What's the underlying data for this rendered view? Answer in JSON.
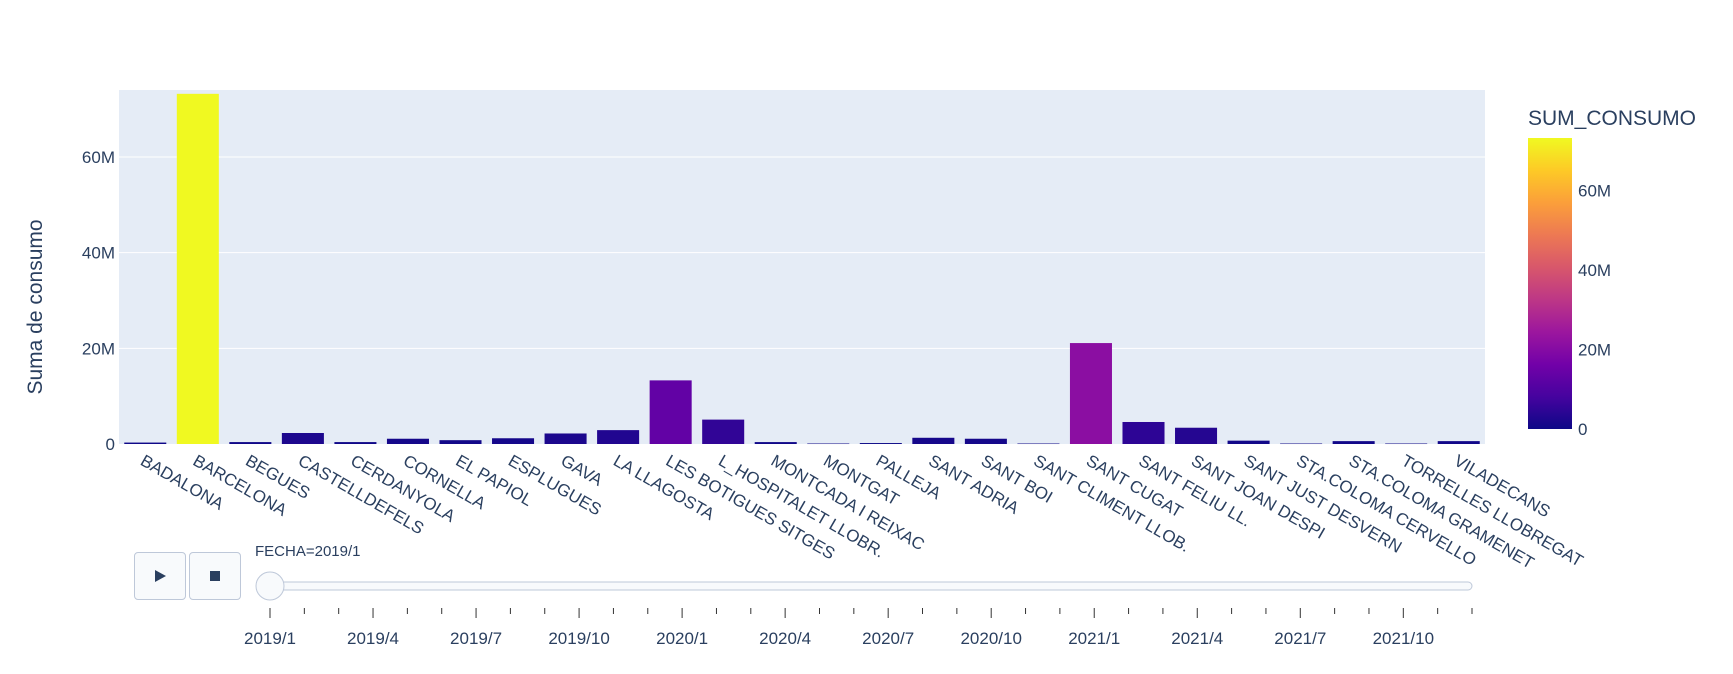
{
  "chart_data": {
    "type": "bar",
    "ylabel": "Suma de consumo",
    "xlabel": "",
    "ylim": [
      0,
      74000000
    ],
    "yticks": [
      0,
      20000000,
      40000000,
      60000000
    ],
    "ytick_labels": [
      "0",
      "20M",
      "40M",
      "60M"
    ],
    "categories": [
      "BADALONA",
      "BARCELONA",
      "BEGUES",
      "CASTELLDEFELS",
      "CERDANYOLA",
      "CORNELLA",
      "EL PAPIOL",
      "ESPLUGUES",
      "GAVA",
      "LA LLAGOSTA",
      "LES BOTIGUES SITGES",
      "L_HOSPITALET LLOBR.",
      "MONTCADA I REIXAC",
      "MONTGAT",
      "PALLEJA",
      "SANT ADRIA",
      "SANT BOI",
      "SANT CLIMENT LLOB.",
      "SANT CUGAT",
      "SANT FELIU LL.",
      "SANT JOAN DESPI",
      "SANT JUST DESVERN",
      "STA.COLOMA CERVELLO",
      "STA.COLOMA GRAMENET",
      "TORRELLES LLOBREGAT",
      "VILADECANS"
    ],
    "values": [
      300000,
      73200000,
      400000,
      2300000,
      400000,
      1100000,
      800000,
      1200000,
      2200000,
      2900000,
      13300000,
      5100000,
      400000,
      100000,
      200000,
      1300000,
      1100000,
      100000,
      21100000,
      4600000,
      3400000,
      700000,
      100000,
      600000,
      100000,
      600000
    ],
    "colorbar": {
      "title": "SUM_CONSUMO",
      "ticks": [
        0,
        20000000,
        40000000,
        60000000
      ],
      "tick_labels": [
        "0",
        "20M",
        "40M",
        "60M"
      ],
      "range": [
        0,
        73200000
      ],
      "colorscale": [
        "#0d0887",
        "#46039f",
        "#7201a8",
        "#9c179e",
        "#bd3786",
        "#d8576b",
        "#ed7953",
        "#fb9f3a",
        "#fdca26",
        "#f0f921"
      ]
    },
    "grid": true,
    "background": "#e5ecf6"
  },
  "animation": {
    "play_icon": "play-icon",
    "stop_icon": "stop-icon",
    "current_frame_label": "FECHA=2019/1",
    "current_frame_index": 0,
    "slider_labels": [
      "2019/1",
      "2019/4",
      "2019/7",
      "2019/10",
      "2020/1",
      "2020/4",
      "2020/7",
      "2020/10",
      "2021/1",
      "2021/4",
      "2021/7",
      "2021/10"
    ],
    "frame_count": 36
  }
}
